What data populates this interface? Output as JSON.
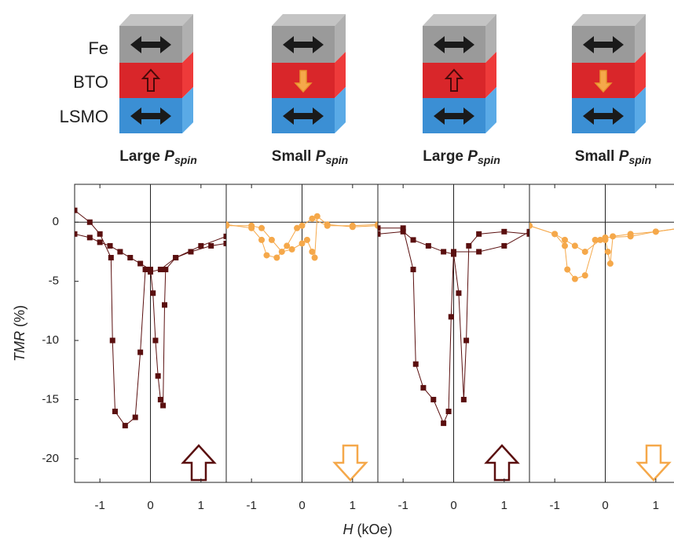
{
  "layers": [
    "Fe",
    "BTO",
    "LSMO"
  ],
  "ylabel": [
    "TMR",
    "(%)"
  ],
  "xlabel": [
    "H",
    "(kOe)"
  ],
  "chart_data": [
    {
      "type": "line",
      "caption": [
        "Large",
        "P",
        "spin"
      ],
      "xlim": [
        -1.5,
        1.5
      ],
      "ylim": [
        -22,
        3.2
      ],
      "xticks": [
        -1,
        0,
        1
      ],
      "yticks": [
        0,
        -5,
        -10,
        -15,
        -20
      ],
      "series": [
        {
          "color": "#5a0f0f",
          "marker": "square",
          "x": [
            -1.5,
            -1.2,
            -1.0,
            -0.8,
            -0.6,
            -0.4,
            -0.2,
            0,
            0.05,
            0.1,
            0.15,
            0.2,
            0.25,
            0.28,
            0.3,
            0.5,
            0.8,
            1.2,
            1.5
          ],
          "values": [
            -1.0,
            -1.3,
            -1.7,
            -2.0,
            -2.5,
            -3.0,
            -3.5,
            -4.0,
            -6,
            -10,
            -13,
            -15,
            -15.5,
            -7,
            -4,
            -3,
            -2.5,
            -2,
            -1.8
          ]
        },
        {
          "color": "#5a0f0f",
          "marker": "square",
          "x": [
            1.5,
            1.0,
            0.5,
            0.2,
            0,
            -0.1,
            -0.2,
            -0.3,
            -0.5,
            -0.7,
            -0.75,
            -0.78,
            -1.0,
            -1.2,
            -1.5
          ],
          "values": [
            -1.2,
            -2,
            -3,
            -4,
            -4.2,
            -4,
            -11,
            -16.5,
            -17.2,
            -16,
            -10,
            -3,
            -1,
            0,
            1.0
          ]
        }
      ]
    },
    {
      "type": "line",
      "caption": [
        "Small",
        "P",
        "spin"
      ],
      "xlim": [
        -1.5,
        1.5
      ],
      "ylim": [
        -22,
        3.2
      ],
      "xticks": [
        -1,
        0,
        1
      ],
      "series": [
        {
          "color": "#f5a84a",
          "marker": "circle",
          "x": [
            -1.5,
            -1.0,
            -0.8,
            -0.6,
            -0.4,
            -0.2,
            0,
            0.1,
            0.2,
            0.25,
            0.3,
            0.5,
            1.0,
            1.5
          ],
          "values": [
            -0.3,
            -0.3,
            -0.5,
            -1.5,
            -2.5,
            -2.3,
            -1.8,
            -1.5,
            -2.5,
            -3,
            0.5,
            -0.2,
            -0.4,
            -0.3
          ]
        },
        {
          "color": "#f5a84a",
          "marker": "circle",
          "x": [
            1.5,
            1.0,
            0.5,
            0.2,
            0,
            -0.1,
            -0.3,
            -0.5,
            -0.7,
            -0.8,
            -1.0,
            -1.5
          ],
          "values": [
            -0.2,
            -0.3,
            -0.3,
            0.3,
            -0.3,
            -0.5,
            -2.0,
            -3.0,
            -2.8,
            -1.5,
            -0.5,
            -0.2
          ]
        }
      ]
    },
    {
      "type": "line",
      "caption": [
        "Large",
        "P",
        "spin"
      ],
      "xlim": [
        -1.5,
        1.5
      ],
      "ylim": [
        -22,
        3.2
      ],
      "xticks": [
        -1,
        0,
        1
      ],
      "series": [
        {
          "color": "#5a0f0f",
          "marker": "square",
          "x": [
            -1.5,
            -1.0,
            -0.8,
            -0.5,
            -0.2,
            0,
            0.1,
            0.2,
            0.25,
            0.3,
            0.5,
            1.0,
            1.5
          ],
          "values": [
            -1,
            -0.8,
            -1.5,
            -2,
            -2.5,
            -2.7,
            -6,
            -15,
            -10,
            -2,
            -1,
            -0.8,
            -1
          ]
        },
        {
          "color": "#5a0f0f",
          "marker": "square",
          "x": [
            1.5,
            1.0,
            0.5,
            0,
            -0.05,
            -0.1,
            -0.2,
            -0.4,
            -0.6,
            -0.75,
            -0.8,
            -1.0,
            -1.5
          ],
          "values": [
            -0.8,
            -2,
            -2.5,
            -2.5,
            -8,
            -16,
            -17,
            -15,
            -14,
            -12,
            -4,
            -0.5,
            -0.5
          ]
        }
      ]
    },
    {
      "type": "line",
      "caption": [
        "Small",
        "P",
        "spin"
      ],
      "xlim": [
        -1.5,
        1.5
      ],
      "ylim": [
        -22,
        3.2
      ],
      "xticks": [
        -1,
        0,
        1
      ],
      "series": [
        {
          "color": "#f5a84a",
          "marker": "circle",
          "x": [
            -1.5,
            -1.0,
            -0.8,
            -0.6,
            -0.4,
            -0.1,
            0,
            0.05,
            0.1,
            0.15,
            0.5,
            1.0,
            1.5
          ],
          "values": [
            -0.3,
            -1,
            -1.5,
            -2,
            -2.5,
            -1.5,
            -1.5,
            -2.5,
            -3.5,
            -1.2,
            -1,
            -0.8,
            -0.5
          ]
        },
        {
          "color": "#f5a84a",
          "marker": "circle",
          "x": [
            1.5,
            1.0,
            0.5,
            0,
            -0.2,
            -0.4,
            -0.6,
            -0.75,
            -0.8,
            -1.0,
            -1.5
          ],
          "values": [
            -0.5,
            -0.8,
            -1.2,
            -1.3,
            -1.5,
            -4.5,
            -4.8,
            -4,
            -2,
            -1,
            -0.3
          ]
        }
      ]
    }
  ]
}
